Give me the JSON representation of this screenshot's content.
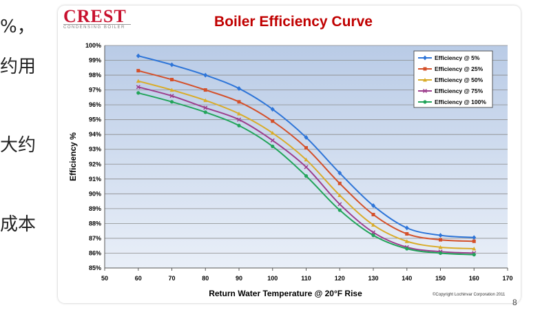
{
  "left_texts": [
    "%，",
    "约用",
    "大约",
    "成本"
  ],
  "logo": {
    "name": "CREST",
    "subtitle": "CONDENSING BOILER"
  },
  "copyright": "©Copyright Lochinvar Corporation 2011",
  "corner_mark": "8",
  "chart_data": {
    "type": "line",
    "title": "Boiler Efficiency Curve",
    "xlabel": "Return Water Temperature @ 20°F Rise",
    "ylabel": "Efficiency %",
    "x": [
      60,
      70,
      80,
      90,
      100,
      110,
      120,
      130,
      140,
      150,
      160
    ],
    "xlim": [
      50,
      170
    ],
    "ylim": [
      85,
      100
    ],
    "xticks": [
      "50",
      "60",
      "70",
      "80",
      "90",
      "100",
      "110",
      "120",
      "130",
      "140",
      "150",
      "160",
      "170"
    ],
    "yticks": [
      "85%",
      "86%",
      "87%",
      "88%",
      "89%",
      "90%",
      "91%",
      "92%",
      "93%",
      "94%",
      "95%",
      "96%",
      "97%",
      "98%",
      "99%",
      "100%"
    ],
    "grid": true,
    "legend_position": "top-right",
    "series": [
      {
        "name": "Efficiency @ 5%",
        "color": "#2e75d8",
        "marker": "diamond",
        "values": [
          99.3,
          98.7,
          98.0,
          97.1,
          95.7,
          93.8,
          91.4,
          89.2,
          87.7,
          87.2,
          87.05
        ]
      },
      {
        "name": "Efficiency @ 25%",
        "color": "#d4502a",
        "marker": "square",
        "values": [
          98.3,
          97.7,
          97.0,
          96.2,
          94.9,
          93.1,
          90.7,
          88.6,
          87.3,
          86.9,
          86.8
        ]
      },
      {
        "name": "Efficiency @ 50%",
        "color": "#d9ac2a",
        "marker": "triangle",
        "values": [
          97.6,
          97.0,
          96.3,
          95.4,
          94.1,
          92.3,
          89.9,
          87.9,
          86.8,
          86.4,
          86.3
        ]
      },
      {
        "name": "Efficiency @ 75%",
        "color": "#9c3d8c",
        "marker": "x",
        "values": [
          97.2,
          96.6,
          95.8,
          95.0,
          93.6,
          91.8,
          89.3,
          87.4,
          86.4,
          86.1,
          86.0
        ]
      },
      {
        "name": "Efficiency @ 100%",
        "color": "#22a45a",
        "marker": "circle",
        "values": [
          96.8,
          96.2,
          95.5,
          94.6,
          93.2,
          91.2,
          88.9,
          87.2,
          86.3,
          86.0,
          85.9
        ]
      }
    ]
  }
}
